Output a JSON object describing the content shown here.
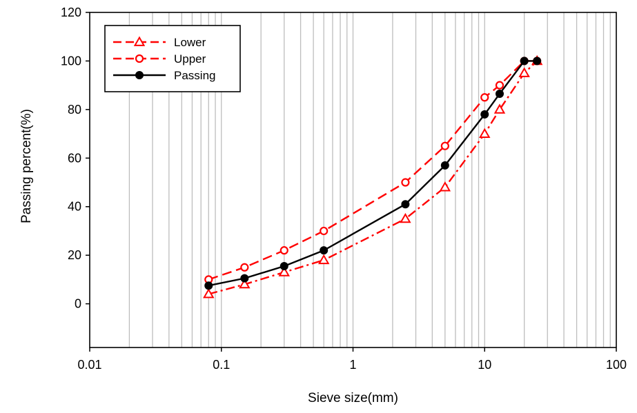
{
  "chart_data": {
    "type": "line",
    "xscale": "log",
    "xlabel": "Sieve size(mm)",
    "ylabel": "Passing percent(%)",
    "xlim": [
      0.01,
      100
    ],
    "ylim": [
      -18,
      120
    ],
    "x_ticks": [
      0.01,
      0.1,
      1,
      10,
      100
    ],
    "x_tick_labels": [
      "0.01",
      "0.1",
      "1",
      "10",
      "100"
    ],
    "y_ticks": [
      0,
      20,
      40,
      60,
      80,
      100,
      120
    ],
    "y_tick_labels": [
      "0",
      "20",
      "40",
      "60",
      "80",
      "100",
      "120"
    ],
    "grid": "x-minor",
    "legend_position": "top-left",
    "series": [
      {
        "name": "Lower",
        "color": "#ff0000",
        "dash": "dashdot",
        "marker": "triangle-open",
        "x": [
          0.08,
          0.15,
          0.3,
          0.6,
          2.5,
          5,
          10,
          13,
          20,
          25
        ],
        "y": [
          4,
          8,
          13,
          18,
          35,
          48,
          70,
          80,
          95,
          100
        ]
      },
      {
        "name": "Upper",
        "color": "#ff0000",
        "dash": "dashed",
        "marker": "circle-open",
        "x": [
          0.08,
          0.15,
          0.3,
          0.6,
          2.5,
          5,
          10,
          13,
          20,
          25
        ],
        "y": [
          10,
          15,
          22,
          30,
          50,
          65,
          85,
          90,
          100,
          100
        ]
      },
      {
        "name": "Passing",
        "color": "#000000",
        "dash": "solid",
        "marker": "circle-filled",
        "x": [
          0.08,
          0.15,
          0.3,
          0.6,
          2.5,
          5,
          10,
          13,
          20,
          25
        ],
        "y": [
          7.5,
          10.5,
          15.5,
          22,
          41,
          57,
          78,
          86.5,
          100,
          100
        ]
      }
    ]
  }
}
